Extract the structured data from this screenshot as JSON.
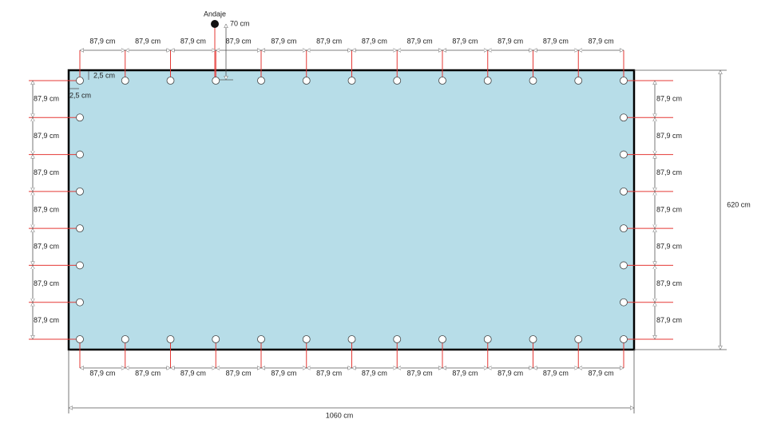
{
  "labels": {
    "anchor": "Andaje",
    "anchor_distance": "70 cm",
    "edge_offset_top": "2,5 cm",
    "edge_offset_side": "2,5 cm",
    "height": "620 cm",
    "width": "1060 cm"
  },
  "top_spacings": [
    "87,9 cm",
    "87,9 cm",
    "87,9 cm",
    "87,9 cm",
    "87,9 cm",
    "87,9 cm",
    "87,9 cm",
    "87,9 cm",
    "87,9 cm",
    "87,9 cm",
    "87,9 cm",
    "87,9 cm"
  ],
  "bottom_spacings": [
    "87,9 cm",
    "87,9 cm",
    "87,9 cm",
    "87,9 cm",
    "87,9 cm",
    "87,9 cm",
    "87,9 cm",
    "87,9 cm",
    "87,9 cm",
    "87,9 cm",
    "87,9 cm",
    "87,9 cm"
  ],
  "left_spacings": [
    "87,9 cm",
    "87,9 cm",
    "87,9 cm",
    "87,9 cm",
    "87,9 cm",
    "87,9 cm",
    "87,9 cm"
  ],
  "right_spacings": [
    "87,9 cm",
    "87,9 cm",
    "87,9 cm",
    "87,9 cm",
    "87,9 cm",
    "87,9 cm",
    "87,9 cm"
  ]
}
